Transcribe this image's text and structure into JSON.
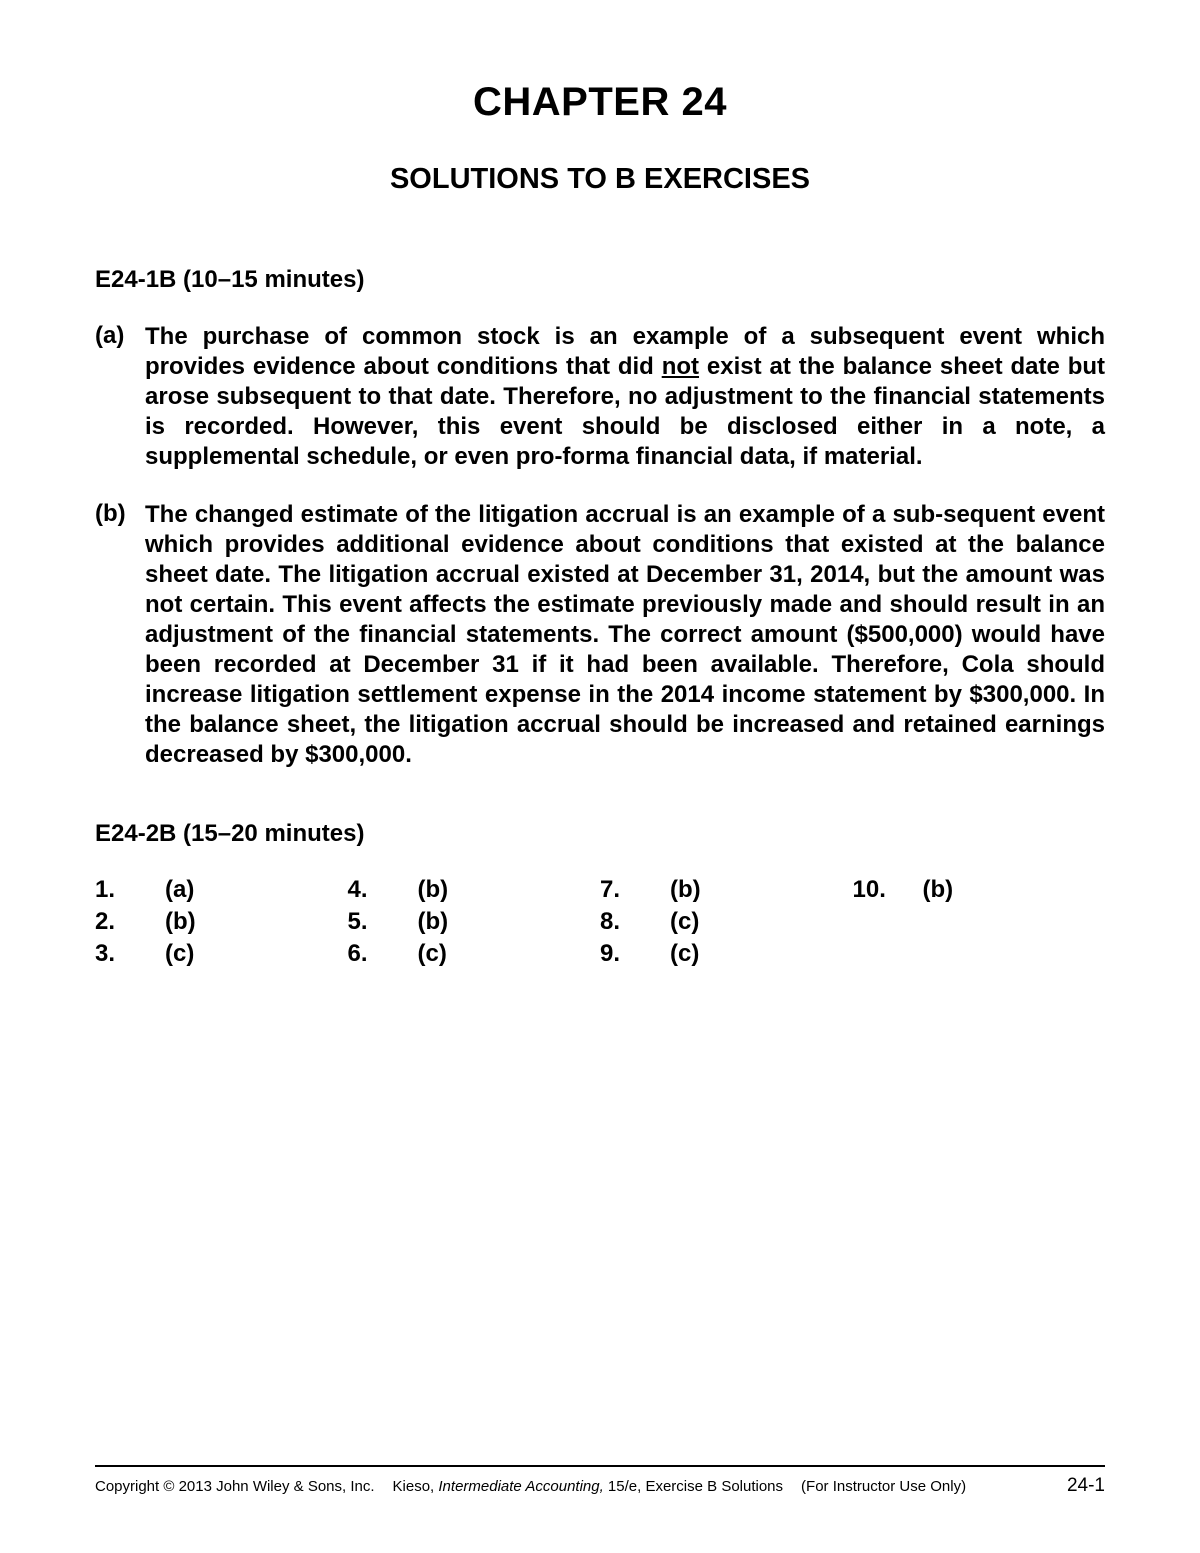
{
  "chapter_title": "CHAPTER 24",
  "subtitle": "SOLUTIONS TO B EXERCISES",
  "exercise1": {
    "header": "E24-1B (10–15 minutes)",
    "items": [
      {
        "label": "(a)",
        "text_before": "The purchase of common stock is an example of a subsequent event which provides evidence about conditions that did ",
        "underlined": "not",
        "text_after": " exist at the balance sheet date but arose subsequent to that date. Therefore, no adjustment to the financial statements is recorded. However, this event should be disclosed either in a note, a supplemental schedule, or even pro-forma financial data, if material."
      },
      {
        "label": "(b)",
        "text_before": "The changed estimate of the litigation accrual is an example of a sub-sequent event which provides additional evidence about conditions that existed at the balance sheet date. The litigation accrual existed at December 31, 2014, but the amount was not certain. This event affects the estimate previously made and should result in an adjustment of the financial statements. The correct amount ($500,000) would have been recorded at December 31 if it had been available. Therefore, Cola should increase litigation settlement expense in the 2014 income statement by $300,000. In the balance sheet, the litigation accrual should be increased and retained earnings decreased by $300,000.",
        "underlined": "",
        "text_after": ""
      }
    ]
  },
  "exercise2": {
    "header": "E24-2B (15–20 minutes)",
    "answers": [
      [
        {
          "num": "1.",
          "val": "(a)"
        },
        {
          "num": "2.",
          "val": "(b)"
        },
        {
          "num": "3.",
          "val": "(c)"
        }
      ],
      [
        {
          "num": "4.",
          "val": "(b)"
        },
        {
          "num": "5.",
          "val": "(b)"
        },
        {
          "num": "6.",
          "val": "(c)"
        }
      ],
      [
        {
          "num": "7.",
          "val": "(b)"
        },
        {
          "num": "8.",
          "val": "(c)"
        },
        {
          "num": "9.",
          "val": "(c)"
        }
      ],
      [
        {
          "num": "10.",
          "val": "(b)"
        }
      ]
    ]
  },
  "footer": {
    "copyright": "Copyright © 2013 John Wiley & Sons, Inc.",
    "author": "Kieso, ",
    "book_title": "Intermediate Accounting,",
    "edition": " 15/e, Exercise B Solutions",
    "note": "(For Instructor Use Only)",
    "page_num": "24-1"
  }
}
